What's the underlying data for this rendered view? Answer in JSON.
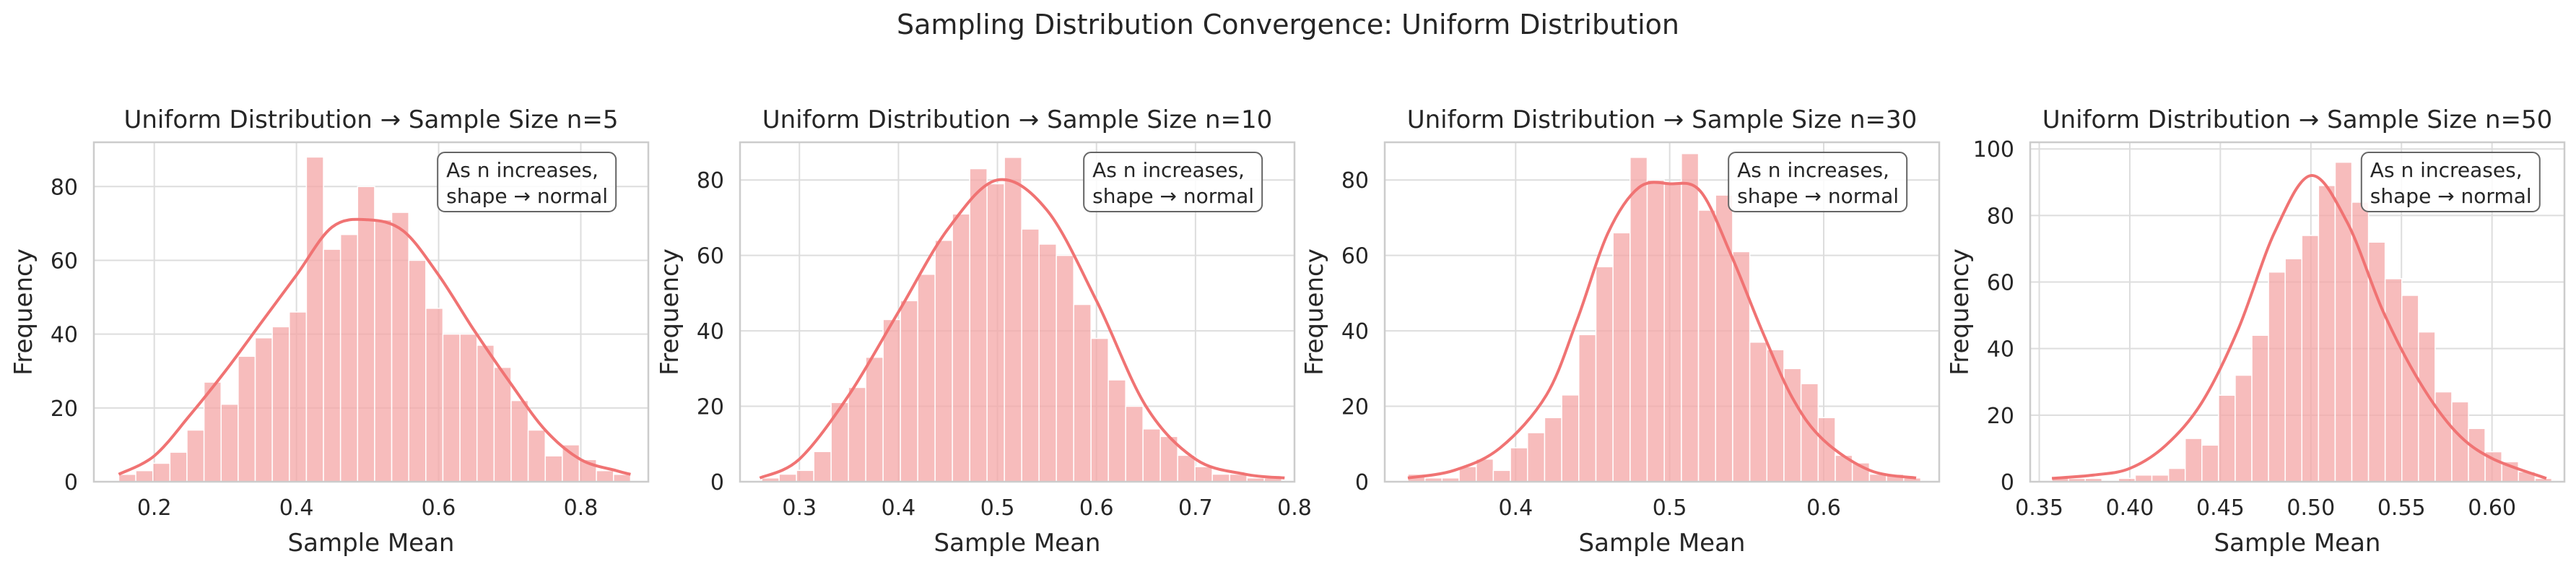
{
  "figure": {
    "title": "Sampling Distribution Convergence: Uniform Distribution"
  },
  "colors": {
    "bar_fill": "#f4a6a6",
    "bar_edge": "#ffffff",
    "kde_line": "#f07373",
    "grid": "#dddddd",
    "axes_edge": "#cccccc"
  },
  "chart_data": [
    {
      "type": "bar",
      "title": "Uniform Distribution → Sample Size n=5",
      "xlabel": "Sample Mean",
      "ylabel": "Frequency",
      "annotation": [
        "As n increases,",
        "shape → normal"
      ],
      "legend": "none",
      "grid": true,
      "xlim": [
        0.115,
        0.895
      ],
      "ylim": [
        0,
        92
      ],
      "xticks": [
        0.2,
        0.4,
        0.6,
        0.8
      ],
      "xtick_labels": [
        "0.2",
        "0.4",
        "0.6",
        "0.8"
      ],
      "yticks": [
        0,
        20,
        40,
        60,
        80
      ],
      "bin_start": 0.15,
      "bin_width": 0.024,
      "values": [
        2,
        3,
        5,
        8,
        14,
        27,
        21,
        34,
        39,
        42,
        46,
        88,
        63,
        67,
        80,
        71,
        73,
        60,
        47,
        40,
        40,
        37,
        31,
        22,
        14,
        7,
        10,
        6,
        3,
        2
      ],
      "kde": {
        "x": [
          0.15,
          0.2,
          0.25,
          0.3,
          0.35,
          0.4,
          0.45,
          0.5,
          0.55,
          0.6,
          0.65,
          0.7,
          0.75,
          0.8,
          0.85,
          0.87
        ],
        "y": [
          2,
          7,
          18,
          30,
          43,
          56,
          69,
          71,
          68,
          56,
          41,
          27,
          14,
          6,
          3,
          2
        ]
      }
    },
    {
      "type": "bar",
      "title": "Uniform Distribution → Sample Size n=10",
      "xlabel": "Sample Mean",
      "ylabel": "Frequency",
      "annotation": [
        "As n increases,",
        "shape → normal"
      ],
      "legend": "none",
      "grid": true,
      "xlim": [
        0.24,
        0.8
      ],
      "ylim": [
        0,
        90
      ],
      "xticks": [
        0.3,
        0.4,
        0.5,
        0.6,
        0.7,
        0.8
      ],
      "xtick_labels": [
        "0.3",
        "0.4",
        "0.5",
        "0.6",
        "0.7",
        "0.8"
      ],
      "yticks": [
        0,
        20,
        40,
        60,
        80
      ],
      "bin_start": 0.262,
      "bin_width": 0.0175,
      "values": [
        1,
        2,
        3,
        8,
        21,
        25,
        33,
        43,
        48,
        55,
        64,
        71,
        83,
        79,
        86,
        67,
        63,
        60,
        47,
        38,
        27,
        20,
        14,
        12,
        7,
        4,
        2,
        2,
        1,
        1
      ],
      "kde": {
        "x": [
          0.26,
          0.3,
          0.35,
          0.4,
          0.45,
          0.5,
          0.55,
          0.6,
          0.65,
          0.7,
          0.75,
          0.79
        ],
        "y": [
          1,
          6,
          23,
          45,
          67,
          80,
          72,
          48,
          20,
          6,
          2,
          1
        ]
      }
    },
    {
      "type": "bar",
      "title": "Uniform Distribution → Sample Size n=30",
      "xlabel": "Sample Mean",
      "ylabel": "Frequency",
      "annotation": [
        "As n increases,",
        "shape → normal"
      ],
      "legend": "none",
      "grid": true,
      "xlim": [
        0.315,
        0.675
      ],
      "ylim": [
        0,
        90
      ],
      "xticks": [
        0.4,
        0.5,
        0.6
      ],
      "xtick_labels": [
        "0.4",
        "0.5",
        "0.6"
      ],
      "yticks": [
        0,
        20,
        40,
        60,
        80
      ],
      "bin_start": 0.33,
      "bin_width": 0.0111,
      "values": [
        2,
        1,
        1,
        4,
        6,
        3,
        9,
        13,
        17,
        23,
        39,
        57,
        66,
        86,
        80,
        79,
        87,
        72,
        76,
        61,
        37,
        35,
        30,
        26,
        17,
        7,
        5,
        2,
        2,
        1
      ],
      "kde": {
        "x": [
          0.33,
          0.36,
          0.39,
          0.42,
          0.44,
          0.46,
          0.48,
          0.5,
          0.52,
          0.54,
          0.56,
          0.58,
          0.6,
          0.63,
          0.66
        ],
        "y": [
          1,
          3,
          9,
          23,
          43,
          66,
          78,
          79,
          77,
          60,
          40,
          22,
          11,
          3,
          1
        ]
      }
    },
    {
      "type": "bar",
      "title": "Uniform Distribution → Sample Size n=50",
      "xlabel": "Sample Mean",
      "ylabel": "Frequency",
      "annotation": [
        "As n increases,",
        "shape → normal"
      ],
      "legend": "none",
      "grid": true,
      "xlim": [
        0.345,
        0.64
      ],
      "ylim": [
        0,
        102
      ],
      "xticks": [
        0.35,
        0.4,
        0.45,
        0.5,
        0.55,
        0.6
      ],
      "xtick_labels": [
        "0.35",
        "0.40",
        "0.45",
        "0.50",
        "0.55",
        "0.60"
      ],
      "yticks": [
        0,
        20,
        40,
        60,
        80,
        100
      ],
      "bin_start": 0.357,
      "bin_width": 0.0092,
      "values": [
        1,
        1,
        1,
        0,
        1,
        2,
        2,
        4,
        13,
        11,
        26,
        32,
        44,
        63,
        67,
        74,
        89,
        96,
        84,
        72,
        61,
        56,
        45,
        27,
        24,
        16,
        9,
        6,
        3,
        1
      ],
      "kde": {
        "x": [
          0.357,
          0.38,
          0.4,
          0.42,
          0.44,
          0.46,
          0.48,
          0.5,
          0.52,
          0.54,
          0.56,
          0.58,
          0.6,
          0.63
        ],
        "y": [
          1,
          2,
          4,
          11,
          24,
          46,
          75,
          92,
          78,
          51,
          30,
          15,
          7,
          1
        ]
      }
    }
  ]
}
